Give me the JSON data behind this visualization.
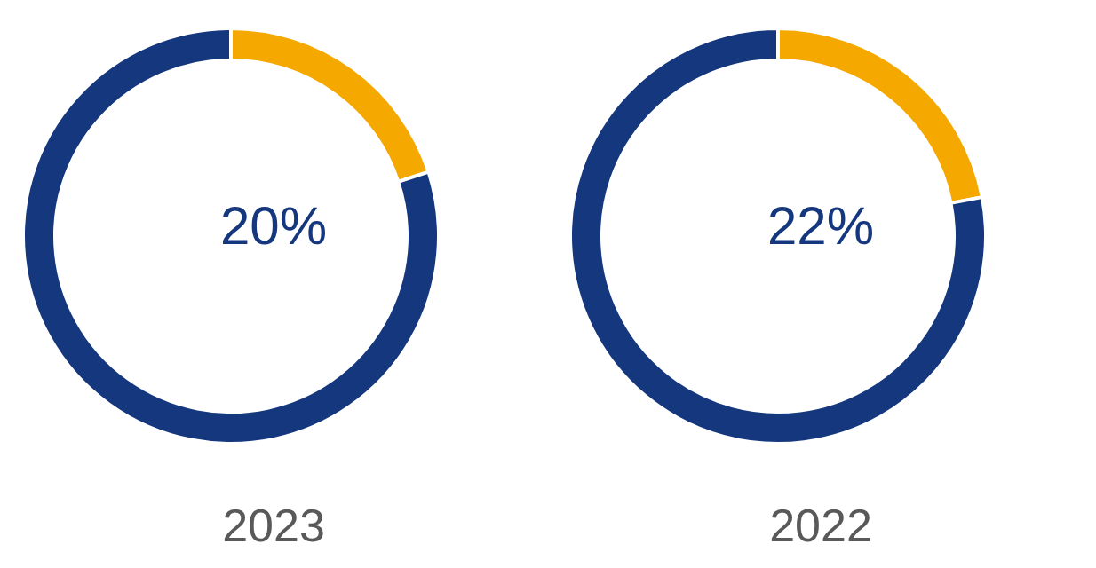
{
  "chart_data": [
    {
      "type": "donut",
      "title": "2023",
      "categories": [
        null,
        null
      ],
      "values": [
        20,
        80
      ],
      "colors": [
        "#f5a800",
        "#14377d"
      ],
      "annotations": [
        "20%"
      ]
    },
    {
      "type": "donut",
      "title": "2022",
      "categories": [
        null,
        null
      ],
      "values": [
        22,
        78
      ],
      "colors": [
        "#f5a800",
        "#14377d"
      ],
      "annotations": [
        "22%"
      ]
    }
  ]
}
